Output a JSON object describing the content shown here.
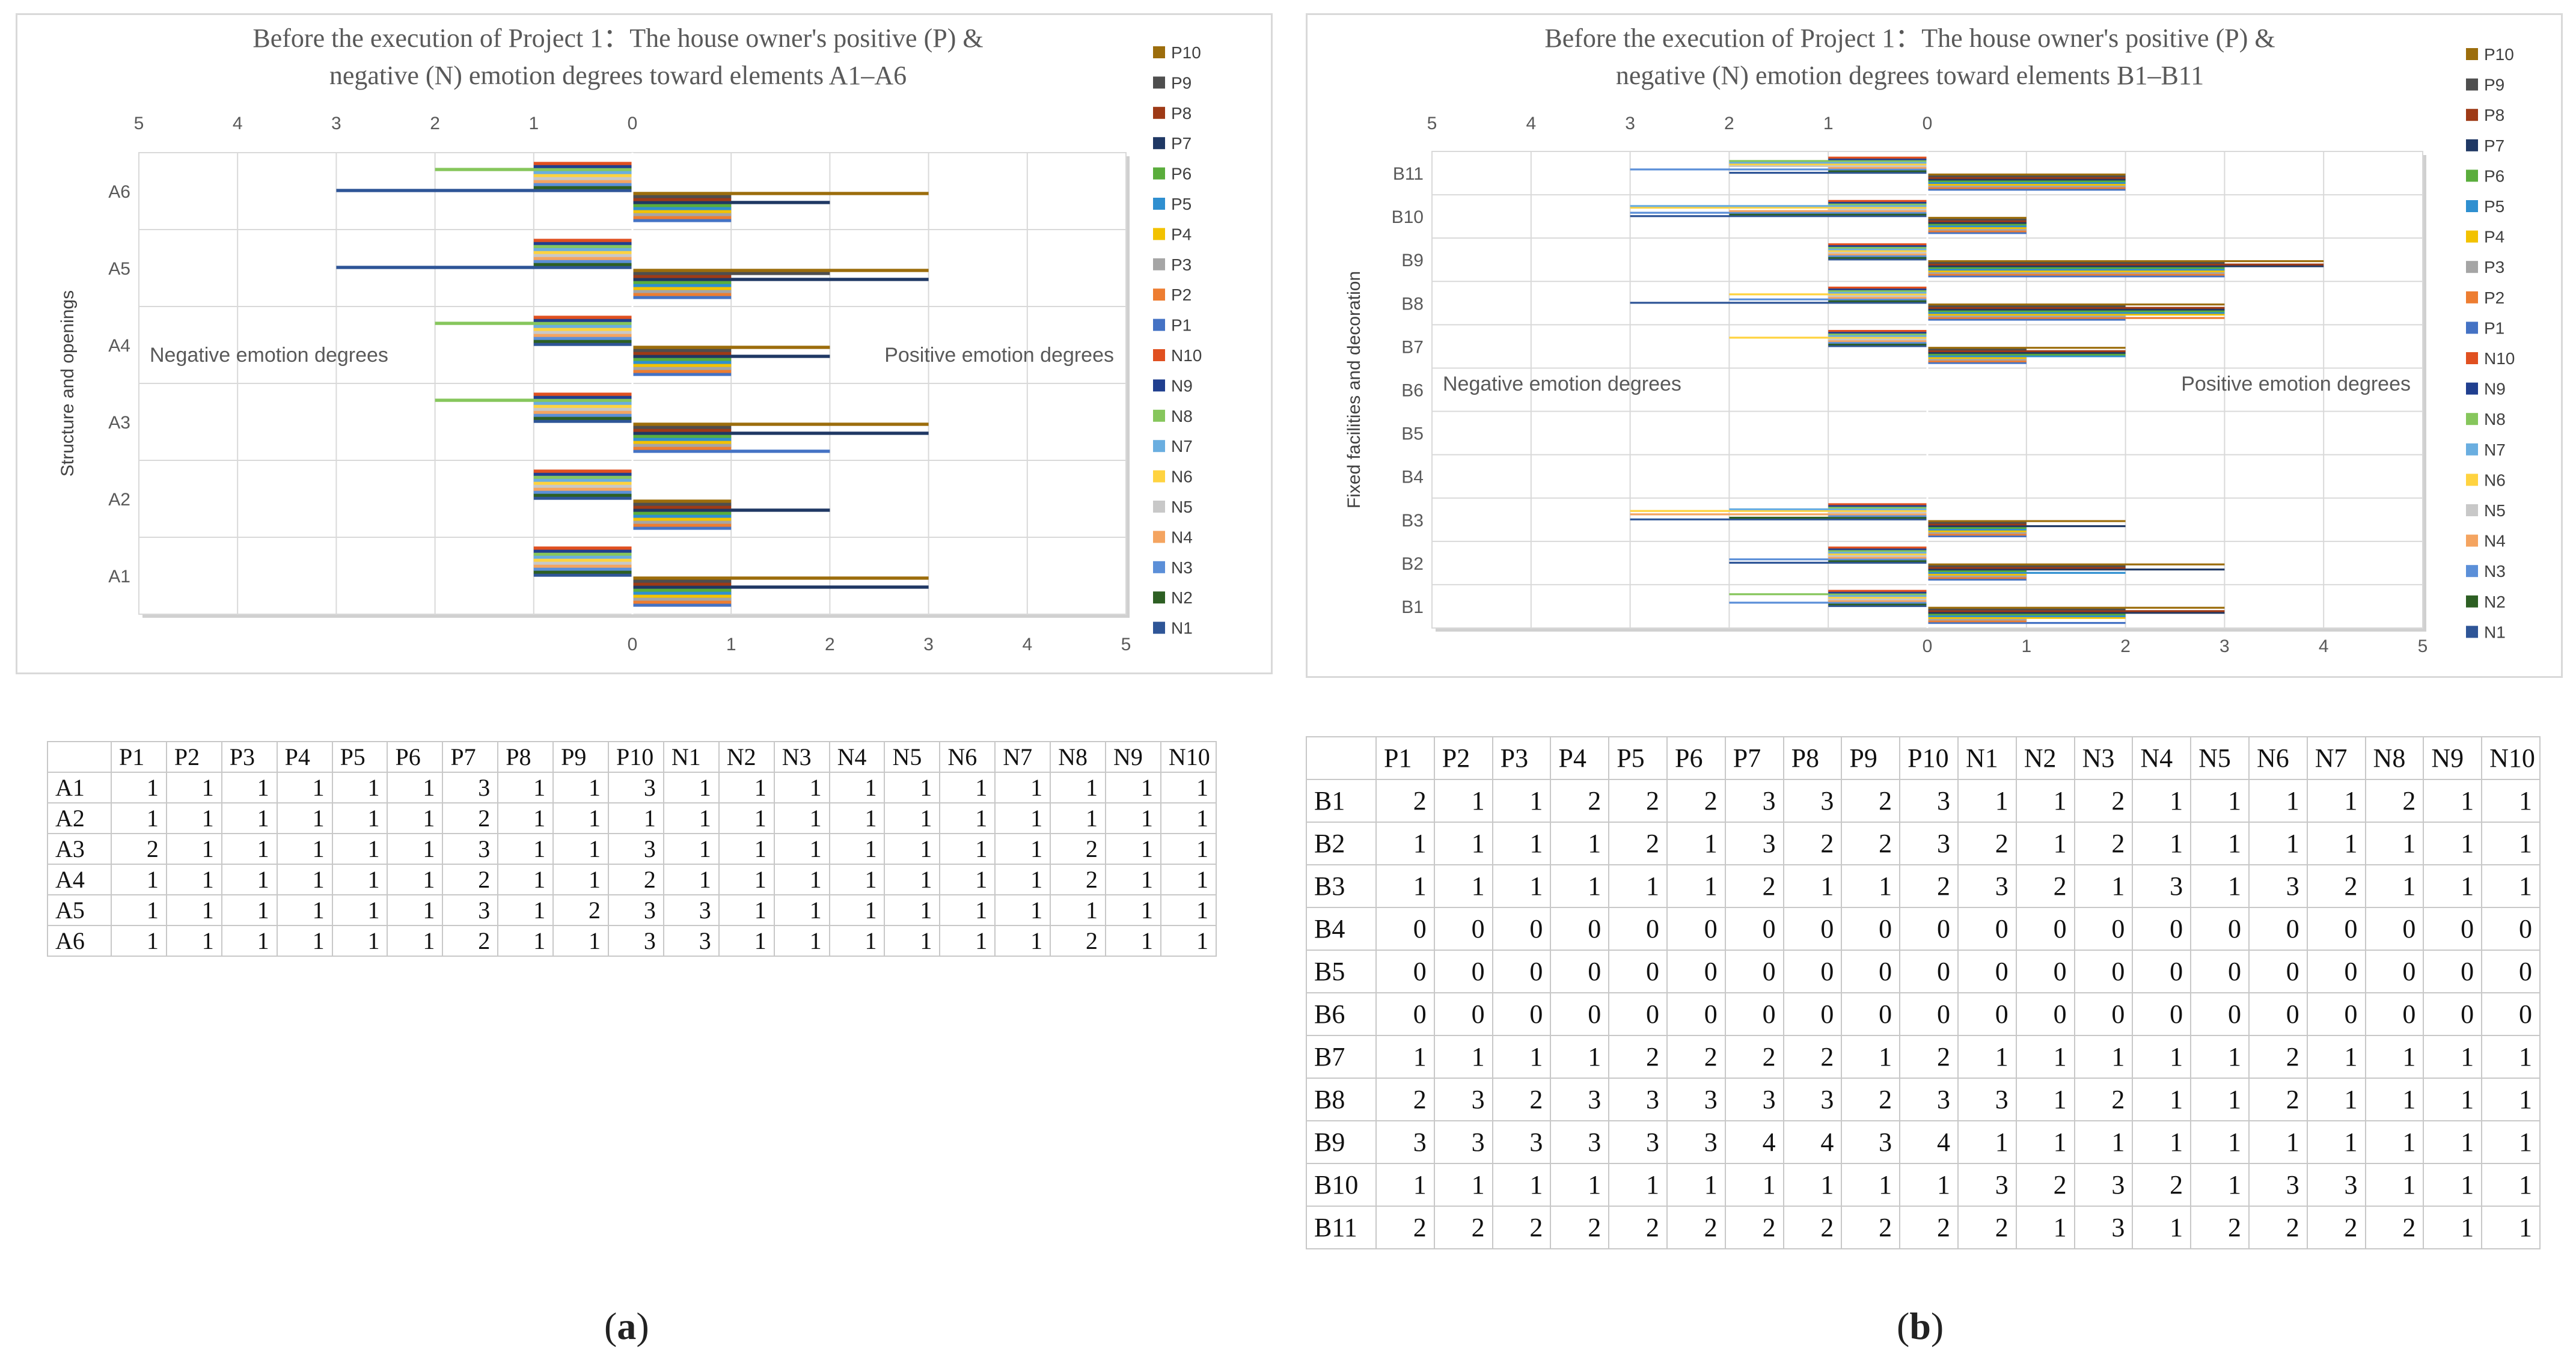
{
  "colors": {
    "P10": "#9c6d0c",
    "P9": "#4e4e4e",
    "P8": "#9e3a16",
    "P7": "#1f3864",
    "P6": "#5aad3c",
    "P5": "#2f8fd0",
    "P4": "#f2c200",
    "P3": "#a5a5a5",
    "P2": "#ed7d31",
    "P1": "#4472c4",
    "N10": "#e05020",
    "N9": "#203f8f",
    "N8": "#86c65c",
    "N7": "#6aaee0",
    "N6": "#ffd340",
    "N5": "#c8c8c8",
    "N4": "#f4a460",
    "N3": "#5b8fd8",
    "N2": "#2d5f23",
    "N1": "#2e5597"
  },
  "chart_data": [
    {
      "type": "bar",
      "orientation": "horizontal-diverging",
      "title_line1": "Before the execution of Project 1：The house owner's positive (P) &",
      "title_line2": "negative (N) emotion degrees toward elements A1–A6",
      "ylabel": "Structure and openings",
      "neg_label": "Negative emotion degrees",
      "pos_label": "Positive emotion degrees",
      "top_ticks": [
        "5",
        "4",
        "3",
        "2",
        "1",
        "0"
      ],
      "bottom_ticks": [
        "0",
        "1",
        "2",
        "3",
        "4",
        "5"
      ],
      "legend": [
        "P10",
        "P9",
        "P8",
        "P7",
        "P6",
        "P5",
        "P4",
        "P3",
        "P2",
        "P1",
        "N10",
        "N9",
        "N8",
        "N7",
        "N6",
        "N5",
        "N4",
        "N3",
        "N2",
        "N1"
      ],
      "categories": [
        "A1",
        "A2",
        "A3",
        "A4",
        "A5",
        "A6"
      ],
      "series_order": [
        "P1",
        "P2",
        "P3",
        "P4",
        "P5",
        "P6",
        "P7",
        "P8",
        "P9",
        "P10",
        "N1",
        "N2",
        "N3",
        "N4",
        "N5",
        "N6",
        "N7",
        "N8",
        "N9",
        "N10"
      ],
      "values": {
        "A1": [
          1,
          1,
          1,
          1,
          1,
          1,
          3,
          1,
          1,
          3,
          1,
          1,
          1,
          1,
          1,
          1,
          1,
          1,
          1,
          1
        ],
        "A2": [
          1,
          1,
          1,
          1,
          1,
          1,
          2,
          1,
          1,
          1,
          1,
          1,
          1,
          1,
          1,
          1,
          1,
          1,
          1,
          1
        ],
        "A3": [
          2,
          1,
          1,
          1,
          1,
          1,
          3,
          1,
          1,
          3,
          1,
          1,
          1,
          1,
          1,
          1,
          1,
          2,
          1,
          1
        ],
        "A4": [
          1,
          1,
          1,
          1,
          1,
          1,
          2,
          1,
          1,
          2,
          1,
          1,
          1,
          1,
          1,
          1,
          1,
          2,
          1,
          1
        ],
        "A5": [
          1,
          1,
          1,
          1,
          1,
          1,
          3,
          1,
          2,
          3,
          3,
          1,
          1,
          1,
          1,
          1,
          1,
          1,
          1,
          1
        ],
        "A6": [
          1,
          1,
          1,
          1,
          1,
          1,
          2,
          1,
          1,
          3,
          3,
          1,
          1,
          1,
          1,
          1,
          1,
          2,
          1,
          1
        ]
      }
    },
    {
      "type": "bar",
      "orientation": "horizontal-diverging",
      "title_line1": "Before the execution of Project 1：The house owner's positive (P) &",
      "title_line2": "negative (N) emotion degrees toward elements B1–B11",
      "ylabel": "Fixed facilities and decoration",
      "neg_label": "Negative emotion degrees",
      "pos_label": "Positive emotion degrees",
      "top_ticks": [
        "5",
        "4",
        "3",
        "2",
        "1",
        "0"
      ],
      "bottom_ticks": [
        "0",
        "1",
        "2",
        "3",
        "4",
        "5"
      ],
      "legend": [
        "P10",
        "P9",
        "P8",
        "P7",
        "P6",
        "P5",
        "P4",
        "P3",
        "P2",
        "P1",
        "N10",
        "N9",
        "N8",
        "N7",
        "N6",
        "N5",
        "N4",
        "N3",
        "N2",
        "N1"
      ],
      "categories": [
        "B1",
        "B2",
        "B3",
        "B4",
        "B5",
        "B6",
        "B7",
        "B8",
        "B9",
        "B10",
        "B11"
      ],
      "series_order": [
        "P1",
        "P2",
        "P3",
        "P4",
        "P5",
        "P6",
        "P7",
        "P8",
        "P9",
        "P10",
        "N1",
        "N2",
        "N3",
        "N4",
        "N5",
        "N6",
        "N7",
        "N8",
        "N9",
        "N10"
      ],
      "values": {
        "B1": [
          2,
          1,
          1,
          2,
          2,
          2,
          3,
          3,
          2,
          3,
          1,
          1,
          2,
          1,
          1,
          1,
          1,
          2,
          1,
          1
        ],
        "B2": [
          1,
          1,
          1,
          1,
          2,
          1,
          3,
          2,
          2,
          3,
          2,
          1,
          2,
          1,
          1,
          1,
          1,
          1,
          1,
          1
        ],
        "B3": [
          1,
          1,
          1,
          1,
          1,
          1,
          2,
          1,
          1,
          2,
          3,
          2,
          1,
          3,
          1,
          3,
          2,
          1,
          1,
          1
        ],
        "B4": [
          0,
          0,
          0,
          0,
          0,
          0,
          0,
          0,
          0,
          0,
          0,
          0,
          0,
          0,
          0,
          0,
          0,
          0,
          0,
          0
        ],
        "B5": [
          0,
          0,
          0,
          0,
          0,
          0,
          0,
          0,
          0,
          0,
          0,
          0,
          0,
          0,
          0,
          0,
          0,
          0,
          0,
          0
        ],
        "B6": [
          0,
          0,
          0,
          0,
          0,
          0,
          0,
          0,
          0,
          0,
          0,
          0,
          0,
          0,
          0,
          0,
          0,
          0,
          0,
          0
        ],
        "B7": [
          1,
          1,
          1,
          1,
          2,
          2,
          2,
          2,
          1,
          2,
          1,
          1,
          1,
          1,
          1,
          2,
          1,
          1,
          1,
          1
        ],
        "B8": [
          2,
          3,
          2,
          3,
          3,
          3,
          3,
          3,
          2,
          3,
          3,
          1,
          2,
          1,
          1,
          2,
          1,
          1,
          1,
          1
        ],
        "B9": [
          3,
          3,
          3,
          3,
          3,
          3,
          4,
          4,
          3,
          4,
          1,
          1,
          1,
          1,
          1,
          1,
          1,
          1,
          1,
          1
        ],
        "B10": [
          1,
          1,
          1,
          1,
          1,
          1,
          1,
          1,
          1,
          1,
          3,
          2,
          3,
          2,
          1,
          3,
          3,
          1,
          1,
          1
        ],
        "B11": [
          2,
          2,
          2,
          2,
          2,
          2,
          2,
          2,
          2,
          2,
          2,
          1,
          3,
          1,
          2,
          2,
          2,
          2,
          1,
          1
        ]
      }
    }
  ],
  "tables": {
    "header": [
      "P1",
      "P2",
      "P3",
      "P4",
      "P5",
      "P6",
      "P7",
      "P8",
      "P9",
      "P10",
      "N1",
      "N2",
      "N3",
      "N4",
      "N5",
      "N6",
      "N7",
      "N8",
      "N9",
      "N10"
    ]
  },
  "panel_labels": {
    "a": "a",
    "b": "b"
  }
}
